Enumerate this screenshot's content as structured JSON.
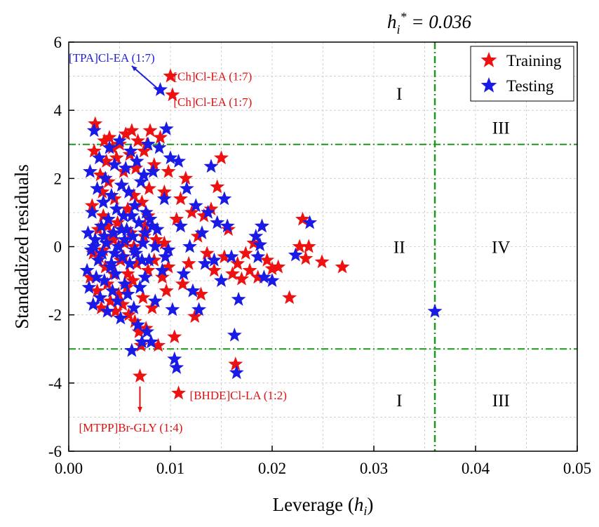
{
  "chart_data": {
    "type": "scatter",
    "title": "",
    "xlabel": "Leverage (h_i)",
    "xlabel_parts": {
      "pre": "Leverage (",
      "var": "h",
      "sub": "i",
      "post": ")"
    },
    "ylabel": "Standadized residuals",
    "xlim": [
      0.0,
      0.05
    ],
    "ylim": [
      -6,
      6
    ],
    "x_ticks": [
      0.0,
      0.01,
      0.02,
      0.03,
      0.04,
      0.05
    ],
    "x_tick_labels": [
      "0.00",
      "0.01",
      "0.02",
      "0.03",
      "0.04",
      "0.05"
    ],
    "y_ticks": [
      -6,
      -4,
      -2,
      0,
      2,
      4,
      6
    ],
    "y_tick_labels": [
      "-6",
      "-4",
      "-2",
      "0",
      "2",
      "4",
      "6"
    ],
    "grid": true,
    "legend_position": "top-right",
    "threshold": {
      "label_parts": {
        "var": "h",
        "sub": "i",
        "sup": "*",
        "value": " = 0.036"
      },
      "h_star": 0.036,
      "residual_limits": [
        3,
        -3
      ],
      "color": "#1a9a1a"
    },
    "regions": [
      {
        "label": "I",
        "x": 0.0325,
        "y": 4.5
      },
      {
        "label": "III",
        "x": 0.0425,
        "y": 3.5
      },
      {
        "label": "II",
        "x": 0.0325,
        "y": 0.0
      },
      {
        "label": "IV",
        "x": 0.0425,
        "y": 0.0
      },
      {
        "label": "I",
        "x": 0.0325,
        "y": -4.5
      },
      {
        "label": "III",
        "x": 0.0425,
        "y": -4.5
      }
    ],
    "annotations": [
      {
        "text": "[TPA]Cl-EA (1:7)",
        "color": "#1f1fd6",
        "x": 0.0,
        "y": 5.55
      },
      {
        "text": "[Ch]Cl-EA (1:7)",
        "color": "#e01010",
        "x": 0.0103,
        "y": 5.0
      },
      {
        "text": "[Ch]Cl-EA (1:7)",
        "color": "#e01010",
        "x": 0.0103,
        "y": 4.25
      },
      {
        "text": "[BHDE]Cl-LA (1:2)",
        "color": "#e01010",
        "x": 0.0119,
        "y": -4.35
      },
      {
        "text": "[MTPP]Br-GLY (1:4)",
        "color": "#e01010",
        "x": 0.001,
        "y": -5.3
      }
    ],
    "series": [
      {
        "name": "Training",
        "color": "#ee1111",
        "points": [
          [
            0.0021,
            -0.9
          ],
          [
            0.0023,
            1.2
          ],
          [
            0.0025,
            2.8
          ],
          [
            0.0026,
            3.6
          ],
          [
            0.0028,
            -1.3
          ],
          [
            0.0029,
            0.5
          ],
          [
            0.003,
            -0.3
          ],
          [
            0.0031,
            2.1
          ],
          [
            0.0032,
            -1.8
          ],
          [
            0.0033,
            1.6
          ],
          [
            0.0034,
            0.9
          ],
          [
            0.0035,
            3.1
          ],
          [
            0.0036,
            -0.6
          ],
          [
            0.0037,
            2.5
          ],
          [
            0.0038,
            -1.1
          ],
          [
            0.0039,
            1.9
          ],
          [
            0.004,
            3.2
          ],
          [
            0.0041,
            -1.6
          ],
          [
            0.0042,
            0.3
          ],
          [
            0.0043,
            2.9
          ],
          [
            0.0044,
            -0.8
          ],
          [
            0.0045,
            1.4
          ],
          [
            0.0046,
            -1.9
          ],
          [
            0.0047,
            2.6
          ],
          [
            0.0048,
            0.7
          ],
          [
            0.0049,
            -1.4
          ],
          [
            0.005,
            3.0
          ],
          [
            0.0051,
            -0.4
          ],
          [
            0.0052,
            1.8
          ],
          [
            0.0053,
            -1.7
          ],
          [
            0.0054,
            2.2
          ],
          [
            0.0055,
            0.1
          ],
          [
            0.0056,
            3.3
          ],
          [
            0.0057,
            -1.2
          ],
          [
            0.0058,
            1.1
          ],
          [
            0.0059,
            -2.0
          ],
          [
            0.006,
            2.7
          ],
          [
            0.0061,
            0.4
          ],
          [
            0.0062,
            3.4
          ],
          [
            0.0063,
            -1.0
          ],
          [
            0.0064,
            1.5
          ],
          [
            0.0065,
            -2.2
          ],
          [
            0.0066,
            2.3
          ],
          [
            0.0067,
            -0.5
          ],
          [
            0.0068,
            3.1
          ],
          [
            0.0069,
            -2.5
          ],
          [
            0.007,
            -3.8
          ],
          [
            0.0071,
            -2.9
          ],
          [
            0.0072,
            1.3
          ],
          [
            0.0073,
            -1.5
          ],
          [
            0.0074,
            2.8
          ],
          [
            0.0075,
            0.6
          ],
          [
            0.0076,
            -2.4
          ],
          [
            0.0077,
            3.0
          ],
          [
            0.0078,
            -0.7
          ],
          [
            0.0079,
            1.7
          ],
          [
            0.008,
            3.4
          ],
          [
            0.0082,
            -1.8
          ],
          [
            0.0084,
            2.4
          ],
          [
            0.0086,
            0.2
          ],
          [
            0.0088,
            -2.9
          ],
          [
            0.009,
            3.2
          ],
          [
            0.0092,
            -0.9
          ],
          [
            0.0094,
            1.6
          ],
          [
            0.0096,
            -1.3
          ],
          [
            0.0098,
            2.2
          ],
          [
            0.01,
            5.0
          ],
          [
            0.0102,
            4.45
          ],
          [
            0.0104,
            -2.65
          ],
          [
            0.0106,
            0.8
          ],
          [
            0.0108,
            -4.3
          ],
          [
            0.011,
            1.4
          ],
          [
            0.0112,
            -1.1
          ],
          [
            0.0115,
            2.0
          ],
          [
            0.0118,
            -0.5
          ],
          [
            0.0121,
            1.0
          ],
          [
            0.0124,
            -2.05
          ],
          [
            0.0127,
            0.3
          ],
          [
            0.013,
            -1.4
          ],
          [
            0.0133,
            0.9
          ],
          [
            0.0136,
            -0.2
          ],
          [
            0.014,
            1.1
          ],
          [
            0.0143,
            -0.7
          ],
          [
            0.0146,
            1.75
          ],
          [
            0.015,
            2.6
          ],
          [
            0.0153,
            -0.3
          ],
          [
            0.0157,
            0.5
          ],
          [
            0.0161,
            -0.8
          ],
          [
            0.0164,
            -3.45
          ],
          [
            0.0166,
            -0.5
          ],
          [
            0.017,
            -0.95
          ],
          [
            0.0174,
            -0.2
          ],
          [
            0.0178,
            -0.7
          ],
          [
            0.0182,
            0.1
          ],
          [
            0.0186,
            -0.9
          ],
          [
            0.019,
            0.6
          ],
          [
            0.0195,
            -0.4
          ],
          [
            0.02,
            -0.65
          ],
          [
            0.0206,
            -0.6
          ],
          [
            0.0217,
            -1.5
          ],
          [
            0.0227,
            0.0
          ],
          [
            0.023,
            0.8
          ],
          [
            0.0233,
            -0.35
          ],
          [
            0.0236,
            0.0
          ],
          [
            0.0249,
            -0.45
          ],
          [
            0.0269,
            -0.6
          ],
          [
            0.0024,
            -0.2
          ],
          [
            0.0034,
            -0.1
          ],
          [
            0.0044,
            0.2
          ],
          [
            0.0054,
            -0.3
          ],
          [
            0.0064,
            0.0
          ],
          [
            0.0074,
            0.3
          ],
          [
            0.0084,
            -0.4
          ],
          [
            0.0094,
            0.1
          ],
          [
            0.0038,
            0.6
          ],
          [
            0.0058,
            -0.8
          ],
          [
            0.0078,
            0.9
          ],
          [
            0.0098,
            -0.6
          ]
        ]
      },
      {
        "name": "Testing",
        "color": "#1a1ae6",
        "points": [
          [
            0.0018,
            -0.7
          ],
          [
            0.0019,
            0.4
          ],
          [
            0.002,
            -1.2
          ],
          [
            0.0021,
            2.2
          ],
          [
            0.0022,
            -0.1
          ],
          [
            0.0023,
            1.0
          ],
          [
            0.0024,
            -1.7
          ],
          [
            0.0025,
            3.4
          ],
          [
            0.0026,
            0.2
          ],
          [
            0.0027,
            -0.9
          ],
          [
            0.0028,
            1.7
          ],
          [
            0.0029,
            -0.4
          ],
          [
            0.003,
            2.6
          ],
          [
            0.0031,
            -1.5
          ],
          [
            0.0032,
            0.6
          ],
          [
            0.0033,
            -0.2
          ],
          [
            0.0034,
            1.3
          ],
          [
            0.0035,
            -1.0
          ],
          [
            0.0036,
            2.0
          ],
          [
            0.0037,
            0.1
          ],
          [
            0.0038,
            -1.9
          ],
          [
            0.0039,
            0.8
          ],
          [
            0.004,
            2.9
          ],
          [
            0.0041,
            -0.6
          ],
          [
            0.0042,
            1.5
          ],
          [
            0.0043,
            -1.3
          ],
          [
            0.0044,
            0.4
          ],
          [
            0.0045,
            2.4
          ],
          [
            0.0046,
            -0.8
          ],
          [
            0.0047,
            1.1
          ],
          [
            0.0048,
            -1.6
          ],
          [
            0.0049,
            0.0
          ],
          [
            0.005,
            3.1
          ],
          [
            0.0051,
            -2.1
          ],
          [
            0.0052,
            1.8
          ],
          [
            0.0053,
            -0.3
          ],
          [
            0.0054,
            0.9
          ],
          [
            0.0055,
            -1.1
          ],
          [
            0.0056,
            2.3
          ],
          [
            0.0057,
            0.5
          ],
          [
            0.0058,
            -1.4
          ],
          [
            0.0059,
            1.6
          ],
          [
            0.006,
            -0.5
          ],
          [
            0.0061,
            2.8
          ],
          [
            0.0062,
            -3.05
          ],
          [
            0.0063,
            0.3
          ],
          [
            0.0064,
            -1.8
          ],
          [
            0.0065,
            1.2
          ],
          [
            0.0066,
            -0.2
          ],
          [
            0.0067,
            2.5
          ],
          [
            0.0068,
            -2.3
          ],
          [
            0.0069,
            0.7
          ],
          [
            0.007,
            -1.2
          ],
          [
            0.0071,
            1.9
          ],
          [
            0.0072,
            -2.8
          ],
          [
            0.0073,
            0.1
          ],
          [
            0.0074,
            2.1
          ],
          [
            0.0075,
            -0.9
          ],
          [
            0.0076,
            1.0
          ],
          [
            0.0077,
            -2.5
          ],
          [
            0.0078,
            3.0
          ],
          [
            0.0079,
            -0.4
          ],
          [
            0.008,
            0.8
          ],
          [
            0.0081,
            -2.8
          ],
          [
            0.0083,
            2.2
          ],
          [
            0.0085,
            -1.6
          ],
          [
            0.0087,
            0.5
          ],
          [
            0.0089,
            2.9
          ],
          [
            0.009,
            4.6
          ],
          [
            0.0092,
            -0.7
          ],
          [
            0.0094,
            1.4
          ],
          [
            0.0096,
            3.45
          ],
          [
            0.0098,
            -0.1
          ],
          [
            0.01,
            2.6
          ],
          [
            0.0102,
            -1.85
          ],
          [
            0.0104,
            -3.3
          ],
          [
            0.0106,
            -3.55
          ],
          [
            0.0108,
            2.5
          ],
          [
            0.011,
            0.6
          ],
          [
            0.0113,
            -0.8
          ],
          [
            0.0116,
            1.7
          ],
          [
            0.0119,
            0.0
          ],
          [
            0.0122,
            -1.3
          ],
          [
            0.0125,
            1.2
          ],
          [
            0.0128,
            -1.85
          ],
          [
            0.0131,
            0.4
          ],
          [
            0.0134,
            -0.5
          ],
          [
            0.0137,
            1.0
          ],
          [
            0.014,
            2.35
          ],
          [
            0.0143,
            -0.4
          ],
          [
            0.0146,
            0.7
          ],
          [
            0.015,
            -1.0
          ],
          [
            0.0153,
            1.4
          ],
          [
            0.0156,
            0.6
          ],
          [
            0.016,
            -0.3
          ],
          [
            0.0163,
            -2.6
          ],
          [
            0.0165,
            -3.7
          ],
          [
            0.0167,
            -1.55
          ],
          [
            0.0184,
            0.3
          ],
          [
            0.0186,
            -0.3
          ],
          [
            0.0188,
            0.05
          ],
          [
            0.019,
            0.6
          ],
          [
            0.0192,
            -0.9
          ],
          [
            0.02,
            -1.0
          ],
          [
            0.0223,
            -0.25
          ],
          [
            0.0237,
            0.7
          ],
          [
            0.036,
            -1.9
          ],
          [
            0.0025,
            0.0
          ],
          [
            0.0035,
            0.3
          ],
          [
            0.0045,
            -0.2
          ],
          [
            0.0055,
            0.2
          ],
          [
            0.0065,
            -0.1
          ],
          [
            0.0075,
            0.4
          ],
          [
            0.0085,
            0.0
          ],
          [
            0.0095,
            -0.3
          ],
          [
            0.0042,
            -0.5
          ],
          [
            0.0052,
            0.5
          ],
          [
            0.0062,
            0.9
          ],
          [
            0.0072,
            -0.4
          ],
          [
            0.0082,
            0.6
          ]
        ]
      }
    ]
  }
}
